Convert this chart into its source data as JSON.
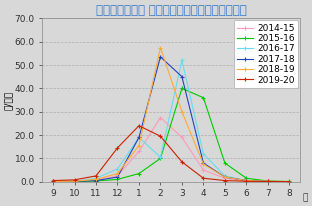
{
  "title": "インフルエンザ 定点当たりの患者報告数の推移",
  "ylabel": "人/定点",
  "ylim": [
    0,
    70.0
  ],
  "yticks": [
    0.0,
    10.0,
    20.0,
    30.0,
    40.0,
    50.0,
    60.0,
    70.0
  ],
  "xtick_labels": [
    "9",
    "10",
    "11",
    "12",
    "1",
    "2",
    "3",
    "4",
    "5",
    "6",
    "7",
    "8"
  ],
  "xlabel_extra": "月",
  "series": {
    "2014-15": {
      "color": "#ff99bb",
      "values": [
        0.1,
        0.1,
        0.5,
        2.5,
        13.0,
        27.5,
        19.0,
        5.0,
        1.5,
        0.3,
        0.1,
        0.05
      ]
    },
    "2015-16": {
      "color": "#00cc00",
      "values": [
        0.1,
        0.1,
        0.3,
        1.0,
        3.5,
        10.0,
        40.0,
        36.0,
        8.0,
        1.5,
        0.3,
        0.1
      ]
    },
    "2016-17": {
      "color": "#66ddee",
      "values": [
        0.1,
        0.1,
        1.5,
        5.5,
        19.0,
        10.5,
        52.0,
        12.0,
        2.5,
        0.5,
        0.1,
        0.05
      ]
    },
    "2017-18": {
      "color": "#2244bb",
      "values": [
        0.1,
        0.1,
        0.5,
        2.0,
        19.0,
        53.5,
        45.0,
        8.0,
        2.0,
        0.5,
        0.1,
        0.05
      ]
    },
    "2018-19": {
      "color": "#ffaa33",
      "values": [
        0.1,
        0.2,
        1.0,
        3.5,
        15.5,
        57.5,
        30.0,
        7.5,
        2.0,
        0.5,
        0.2,
        0.05
      ]
    },
    "2019-20": {
      "color": "#cc2200",
      "values": [
        0.5,
        0.8,
        2.5,
        14.5,
        24.0,
        19.5,
        8.5,
        1.5,
        0.5,
        0.2,
        0.1,
        0.05
      ]
    }
  },
  "background_color": "#d8d8d8",
  "plot_bg_color": "#d8d8d8",
  "title_color": "#3377cc",
  "title_fontsize": 8.5,
  "axis_fontsize": 6.5,
  "legend_fontsize": 6.5
}
